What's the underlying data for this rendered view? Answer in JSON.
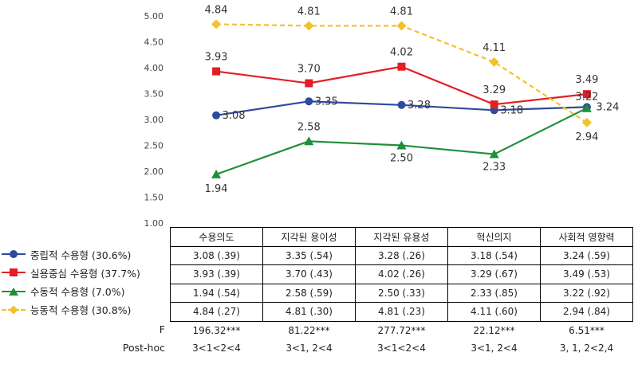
{
  "chart_data": {
    "type": "line",
    "categories": [
      "수용의도",
      "지각된 용이성",
      "지각된 유용성",
      "혁신의지",
      "사회적 영향력"
    ],
    "ylim": [
      1.0,
      5.0
    ],
    "y_ticks": [
      "1.00",
      "1.50",
      "2.00",
      "2.50",
      "3.00",
      "3.50",
      "4.00",
      "4.50",
      "5.00"
    ],
    "grid": false,
    "series": [
      {
        "name": "중립적 수용형 (30.6%)",
        "color": "#2E4A9E",
        "marker": "circle",
        "dash": false,
        "values": [
          3.08,
          3.35,
          3.28,
          3.18,
          3.24
        ],
        "value_labels": [
          "3.08",
          "3.35",
          "3.28",
          "3.18",
          "3.24"
        ],
        "cells": [
          "3.08 (.39)",
          "3.35 (.54)",
          "3.28 (.26)",
          "3.18 (.54)",
          "3.24 (.59)"
        ]
      },
      {
        "name": "실용중심 수용형 (37.7%)",
        "color": "#E31E24",
        "marker": "square",
        "dash": false,
        "values": [
          3.93,
          3.7,
          4.02,
          3.29,
          3.49
        ],
        "value_labels": [
          "3.93",
          "3.70",
          "4.02",
          "3.29",
          "3.49"
        ],
        "cells": [
          "3.93 (.39)",
          "3.70 (.43)",
          "4.02 (.26)",
          "3.29 (.67)",
          "3.49 (.53)"
        ]
      },
      {
        "name": "수동적 수용형 (7.0%)",
        "color": "#1E8F3A",
        "marker": "triangle",
        "dash": false,
        "values": [
          1.94,
          2.58,
          2.5,
          2.33,
          3.22
        ],
        "value_labels": [
          "1.94",
          "2.58",
          "2.50",
          "2.33",
          "3.22"
        ],
        "cells": [
          "1.94 (.54)",
          "2.58 (.59)",
          "2.50 (.33)",
          "2.33 (.85)",
          "3.22 (.92)"
        ]
      },
      {
        "name": "능동적 수용형 (30.8%)",
        "color": "#F2C12E",
        "marker": "diamond",
        "dash": true,
        "values": [
          4.84,
          4.81,
          4.81,
          4.11,
          2.94
        ],
        "value_labels": [
          "4.84",
          "4.81",
          "4.81",
          "4.11",
          "2.94"
        ],
        "cells": [
          "4.84 (.27)",
          "4.81 (.30)",
          "4.81 (.23)",
          "4.11 (.60)",
          "2.94 (.84)"
        ]
      }
    ],
    "stats": [
      {
        "label": "F",
        "values": [
          "196.32***",
          "81.22***",
          "277.72***",
          "22.12***",
          "6.51***"
        ]
      },
      {
        "label": "Post-hoc",
        "values": [
          "3<1<2<4",
          "3<1, 2<4",
          "3<1<2<4",
          "3<1, 2<4",
          "3, 1, 2<2,4"
        ]
      }
    ]
  }
}
